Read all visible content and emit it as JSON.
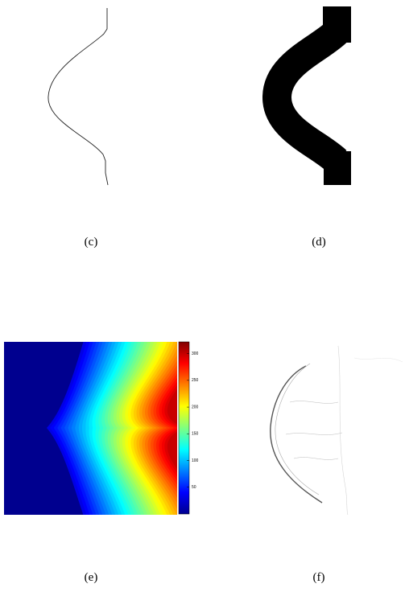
{
  "panels": [
    {
      "caption": "(c)"
    },
    {
      "caption": "(d)"
    },
    {
      "caption": "(e)",
      "colorbar": {
        "lim": [
          0,
          322
        ],
        "ticks": [
          50,
          100,
          150,
          200,
          250,
          300
        ]
      }
    },
    {
      "caption": "(f)"
    }
  ]
}
